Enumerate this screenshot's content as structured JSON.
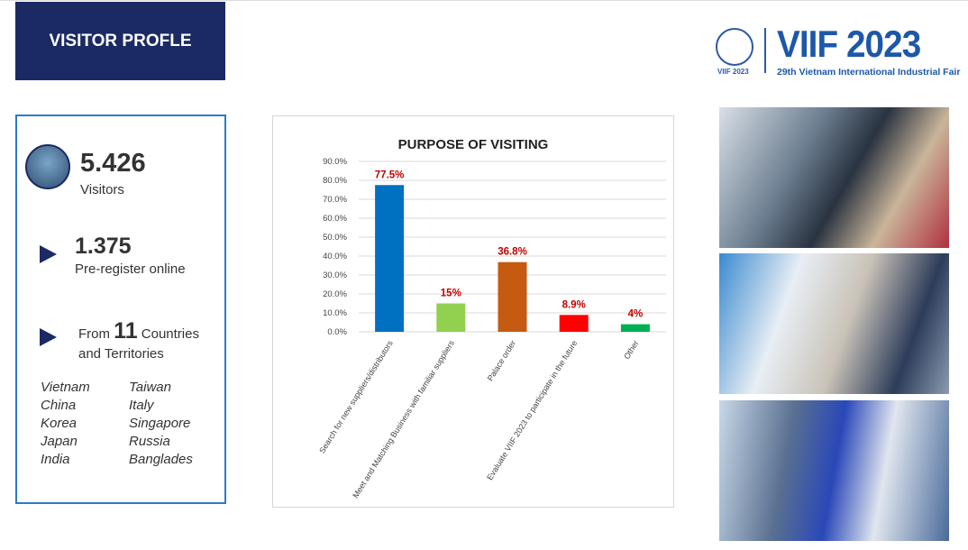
{
  "header": {
    "title": "VISITOR PROFLE"
  },
  "logo": {
    "name": "VIIF 2023",
    "subtitle": "29th Vietnam International Industrial Fair",
    "emblem_text": "VIIF 2023",
    "color": "#1d58a8"
  },
  "stats": {
    "visitors": {
      "value": "5.426",
      "label": "Visitors"
    },
    "preregister": {
      "value": "1.375",
      "label": "Pre-register online"
    },
    "countries": {
      "prefix": "From",
      "value": "11",
      "suffix": "Countries",
      "suffix2": "and Territories"
    },
    "country_list": [
      "Vietnam",
      "Taiwan",
      "China",
      "Italy",
      "Korea",
      "Singapore",
      "Japan",
      "Russia",
      "India",
      "Banglades"
    ]
  },
  "chart_data": {
    "type": "bar",
    "title": "PURPOSE OF VISITING",
    "categories": [
      "Search for new suppliers/distributors",
      "Meet and Matching Business with familiar suppliers",
      "Palace order",
      "Evaluate VIIF 2023 to participate in the future",
      "Other"
    ],
    "values": [
      77.5,
      15,
      36.8,
      8.9,
      4
    ],
    "data_labels": [
      "77.5%",
      "15%",
      "36.8%",
      "8.9%",
      "4%"
    ],
    "colors": [
      "#0070c0",
      "#92d050",
      "#c55a11",
      "#ff0000",
      "#00b050"
    ],
    "ylim": [
      0,
      90
    ],
    "yticks": [
      "0.0%",
      "10.0%",
      "20.0%",
      "30.0%",
      "40.0%",
      "50.0%",
      "60.0%",
      "70.0%",
      "80.0%",
      "90.0%"
    ],
    "grid": true,
    "label_color": "#c00000"
  },
  "photos": [
    "exhibition-booth-photo",
    "exhibition-visitors-photo",
    "business-meeting-photo"
  ]
}
